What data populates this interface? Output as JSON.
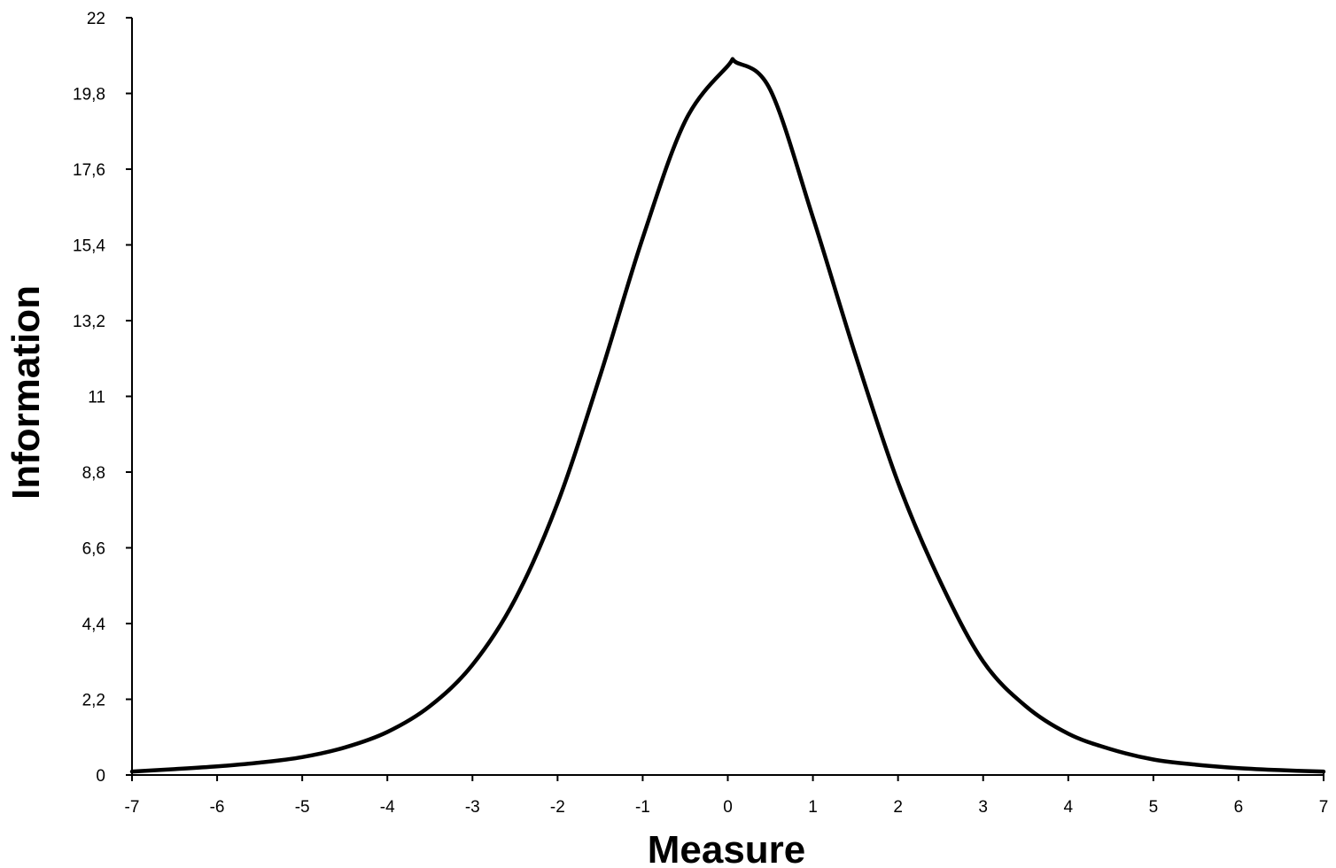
{
  "chart_data": {
    "type": "line",
    "title": "",
    "xlabel": "Measure",
    "ylabel": "Information",
    "xlim": [
      -7,
      7
    ],
    "ylim": [
      0,
      22
    ],
    "x_ticks": [
      -7,
      -6,
      -5,
      -4,
      -3,
      -2,
      -1,
      0,
      1,
      2,
      3,
      4,
      5,
      6,
      7
    ],
    "x_tick_labels": [
      "-7",
      "-6",
      "-5",
      "-4",
      "-3",
      "-2",
      "-1",
      "0",
      "1",
      "2",
      "3",
      "4",
      "5",
      "6",
      "7"
    ],
    "y_ticks": [
      0,
      2.2,
      4.4,
      6.6,
      8.8,
      11,
      13.2,
      15.4,
      17.6,
      19.8,
      22
    ],
    "y_tick_labels": [
      "0",
      "2,2",
      "4,4",
      "6,6",
      "8,8",
      "11",
      "13,2",
      "15,4",
      "17,6",
      "19,8",
      "22"
    ],
    "grid": false,
    "legend": "none",
    "series": [
      {
        "color": "#000000",
        "x": [
          -7,
          -6.5,
          -6,
          -5.5,
          -5,
          -4.5,
          -4,
          -3.5,
          -3,
          -2.5,
          -2,
          -1.5,
          -1,
          -0.5,
          0,
          0.1,
          0.5,
          1,
          1.5,
          2,
          2.5,
          3,
          3.5,
          4,
          4.5,
          5,
          5.5,
          6,
          6.5,
          7
        ],
        "y": [
          0.1,
          0.17,
          0.25,
          0.36,
          0.52,
          0.8,
          1.25,
          2,
          3.2,
          5.1,
          7.9,
          11.6,
          15.6,
          19.0,
          20.6,
          20.7,
          19.9,
          16.2,
          12.2,
          8.5,
          5.6,
          3.3,
          2.0,
          1.2,
          0.75,
          0.45,
          0.3,
          0.2,
          0.14,
          0.1
        ]
      }
    ]
  }
}
